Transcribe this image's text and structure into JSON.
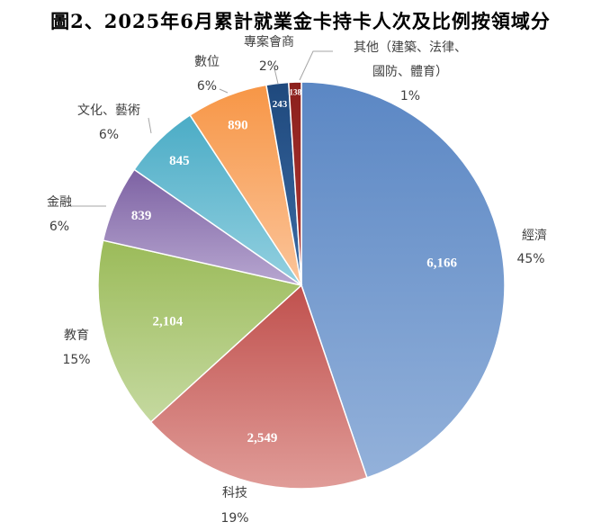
{
  "chart_data": {
    "type": "pie",
    "title": "圖2、2025年6月累計就業金卡持卡人次及比例按領域分",
    "slices": [
      {
        "category": "經濟",
        "value": 6166,
        "value_label": "6,166",
        "percent_label": "45%",
        "color": "#5b87c4",
        "color_light": "#93b1da",
        "label_lines": [
          "經濟"
        ]
      },
      {
        "category": "科技",
        "value": 2549,
        "value_label": "2,549",
        "percent_label": "19%",
        "color": "#c0504d",
        "color_light": "#e09c98",
        "label_lines": [
          "科技"
        ]
      },
      {
        "category": "教育",
        "value": 2104,
        "value_label": "2,104",
        "percent_label": "15%",
        "color": "#9bbb59",
        "color_light": "#c5d9a0",
        "label_lines": [
          "教育"
        ]
      },
      {
        "category": "金融",
        "value": 839,
        "value_label": "839",
        "percent_label": "6%",
        "color": "#7d62a3",
        "color_light": "#b7a6d0",
        "label_lines": [
          "金融"
        ]
      },
      {
        "category": "文化、藝術",
        "value": 845,
        "value_label": "845",
        "percent_label": "6%",
        "color": "#4bacc6",
        "color_light": "#93d0e0",
        "label_lines": [
          "文化、藝術"
        ]
      },
      {
        "category": "數位",
        "value": 890,
        "value_label": "890",
        "percent_label": "6%",
        "color": "#f79646",
        "color_light": "#fbc49a",
        "label_lines": [
          "數位"
        ]
      },
      {
        "category": "專案會商",
        "value": 243,
        "value_label": "243",
        "percent_label": "2%",
        "color": "#1f497d",
        "color_light": "#3b6aa3",
        "label_lines": [
          "專案會商"
        ]
      },
      {
        "category": "其他（建築、法律、國防、體育）",
        "value": 138,
        "value_label": "138",
        "percent_label": "1%",
        "color": "#8b1f1c",
        "color_light": "#b03a36",
        "label_lines": [
          "其他（建築、法律、",
          "國防、體育）"
        ]
      }
    ]
  }
}
